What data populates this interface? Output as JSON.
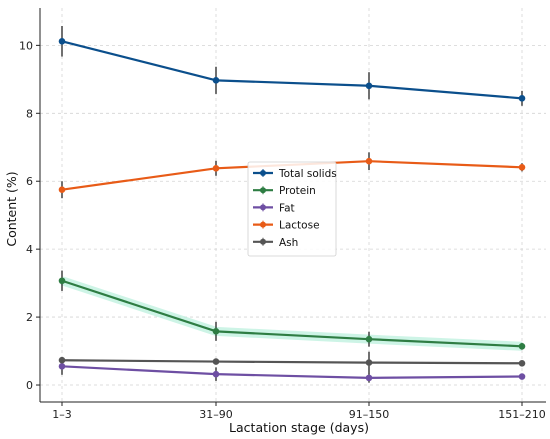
{
  "chart_data": {
    "type": "line",
    "title": "",
    "xlabel": "Lactation stage (days)",
    "ylabel": "Content (%)",
    "categories": [
      "1–3",
      "31–90",
      "91–150",
      "151–210"
    ],
    "ylim": [
      -0.5,
      11.1
    ],
    "yticks": [
      0,
      2,
      4,
      6,
      8,
      10
    ],
    "grid": true,
    "legend_position": "center",
    "series": [
      {
        "name": "Total solids",
        "color": "#0b4f8c",
        "values": [
          10.12,
          8.97,
          8.81,
          8.44
        ],
        "errors": [
          0.45,
          0.4,
          0.4,
          0.22
        ]
      },
      {
        "name": "Protein",
        "color": "#2e7d43",
        "values": [
          3.07,
          1.58,
          1.35,
          1.14
        ],
        "errors": [
          0.3,
          0.28,
          0.22,
          0.1
        ]
      },
      {
        "name": "Fat",
        "color": "#6e4fa3",
        "values": [
          0.55,
          0.32,
          0.21,
          0.25
        ],
        "errors": [
          0.25,
          0.2,
          0.14,
          0.05
        ]
      },
      {
        "name": "Lactose",
        "color": "#e85b17",
        "values": [
          5.75,
          6.38,
          6.59,
          6.41
        ],
        "errors": [
          0.25,
          0.22,
          0.26,
          0.12
        ]
      },
      {
        "name": "Ash",
        "color": "#555555",
        "values": [
          0.73,
          0.69,
          0.66,
          0.64
        ],
        "errors": [
          0.06,
          0.05,
          0.32,
          0.04
        ]
      }
    ]
  }
}
